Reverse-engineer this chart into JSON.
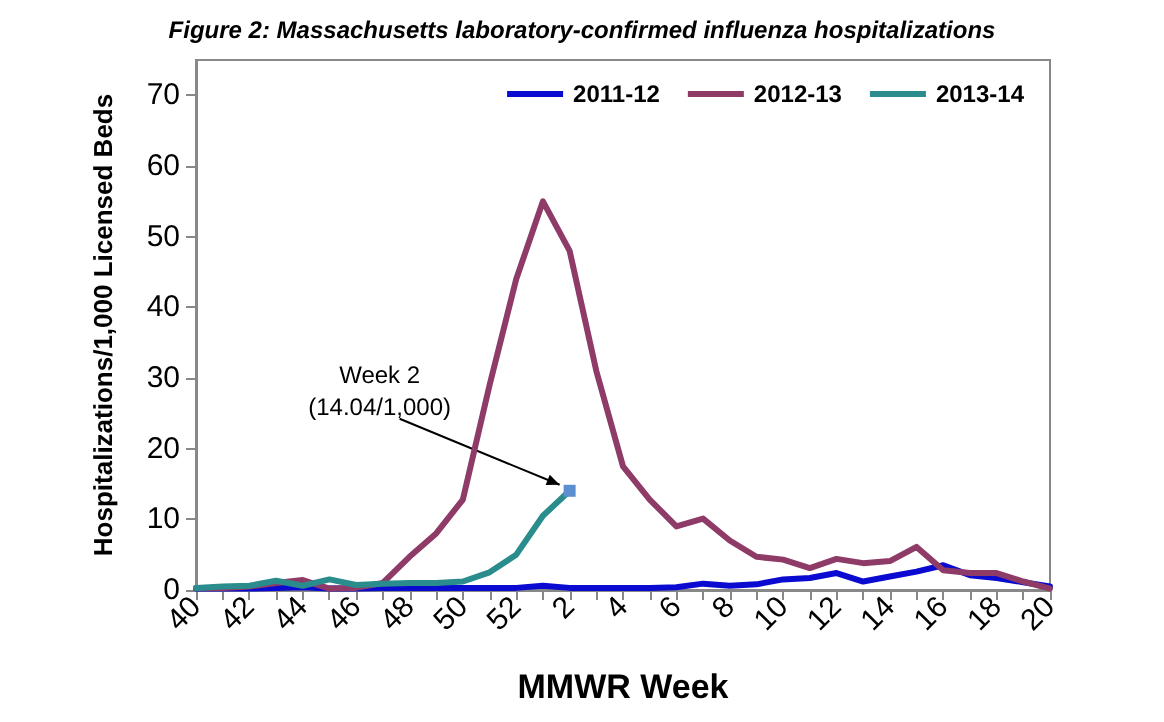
{
  "chart_data": {
    "type": "line",
    "title": "Figure 2: Massachusetts laboratory-confirmed influenza hospitalizations",
    "xlabel": "MMWR Week",
    "ylabel": "Hospitalizations/1,000 Licensed Beds",
    "categories": [
      "40",
      null,
      "42",
      null,
      "44",
      null,
      "46",
      null,
      "48",
      null,
      "50",
      null,
      "52",
      null,
      "2",
      null,
      "4",
      null,
      "6",
      null,
      "8",
      null,
      "10",
      null,
      "12",
      null,
      "14",
      null,
      "16",
      null,
      "18",
      null,
      "20"
    ],
    "series": [
      {
        "name": "2011-12",
        "color": "#0a0ad0",
        "values": [
          0.2,
          0.2,
          0.2,
          0.3,
          0.4,
          0.2,
          0.2,
          0.3,
          0.3,
          0.3,
          0.3,
          0.3,
          0.3,
          0.6,
          0.3,
          0.3,
          0.3,
          0.3,
          0.4,
          0.9,
          0.6,
          0.8,
          1.5,
          1.7,
          2.4,
          1.2,
          1.9,
          2.6,
          3.5,
          2.1,
          1.7,
          1.1,
          0.5
        ]
      },
      {
        "name": "2012-13",
        "color": "#8e3b68",
        "values": [
          0.3,
          0.3,
          0.5,
          1.0,
          1.4,
          0.2,
          0.3,
          1.0,
          4.7,
          8,
          12.8,
          29,
          44,
          55,
          48,
          31,
          17.5,
          12.8,
          9,
          10.1,
          7,
          4.7,
          4.3,
          3.1,
          4.4,
          3.8,
          4.1,
          6.1,
          2.8,
          2.4,
          2.4,
          1.2,
          0.2
        ]
      },
      {
        "name": "2013-14",
        "color": "#2a8c8c",
        "values": [
          0.3,
          0.5,
          0.6,
          1.3,
          0.6,
          1.5,
          0.7,
          0.9,
          1.0,
          1.0,
          1.2,
          2.5,
          5,
          10.5,
          14.04,
          null,
          null,
          null,
          null,
          null,
          null,
          null,
          null,
          null,
          null,
          null,
          null,
          null,
          null,
          null,
          null,
          null,
          null
        ]
      }
    ],
    "annotations": [
      {
        "text": "Week 2\n(14.04/1,000)",
        "x": "2",
        "y": 14.04
      }
    ],
    "ylim": [
      0,
      75
    ],
    "yticks": [
      0,
      10,
      20,
      30,
      40,
      50,
      60,
      70
    ],
    "grid": false,
    "legend": "top right",
    "line_style": "solid"
  }
}
